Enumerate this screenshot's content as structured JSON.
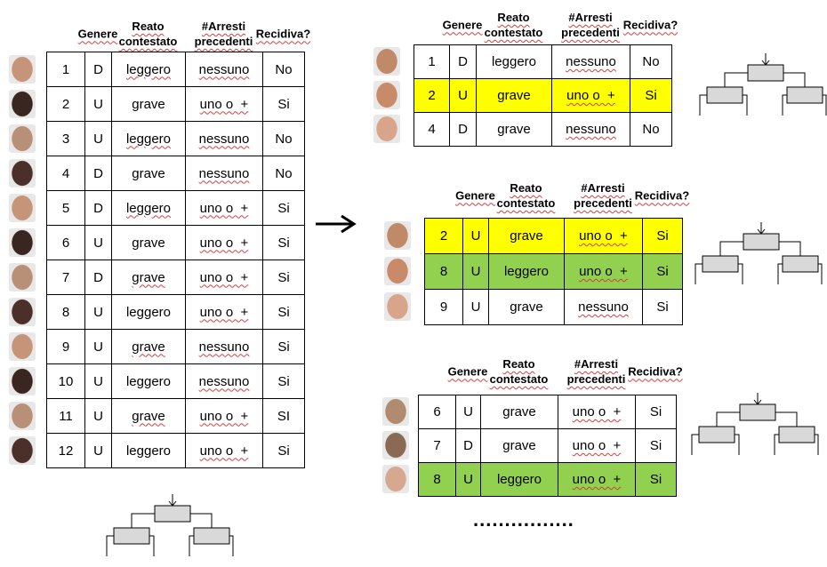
{
  "main": {
    "headers": [
      "Genere",
      "Reato contestato",
      "#Arresti precedenti",
      "Recidiva?"
    ],
    "rows": [
      [
        1,
        "D",
        "leggero",
        "nessuno",
        "No"
      ],
      [
        2,
        "U",
        "grave",
        "uno o  +",
        "Si"
      ],
      [
        3,
        "U",
        "leggero",
        "nessuno",
        "No"
      ],
      [
        4,
        "D",
        "grave",
        "nessuno",
        "No"
      ],
      [
        5,
        "D",
        "leggero",
        "uno o  +",
        "Si"
      ],
      [
        6,
        "U",
        "grave",
        "uno o  +",
        "Si"
      ],
      [
        7,
        "D",
        "grave",
        "uno o  +",
        "Si"
      ],
      [
        8,
        "U",
        "leggero",
        "uno o  +",
        "Si"
      ],
      [
        9,
        "U",
        "grave",
        "nessuno",
        "Si"
      ],
      [
        10,
        "U",
        "leggero",
        "nessuno",
        "Si"
      ],
      [
        11,
        "U",
        "grave",
        "uno o  +",
        "SI"
      ],
      [
        12,
        "U",
        "leggero",
        "uno o  +",
        "Si"
      ]
    ],
    "row_colors": [
      "#ffffff",
      "#ffffff",
      "#ffffff",
      "#ffffff",
      "#ffffff",
      "#ffffff",
      "#ffffff",
      "#ffffff",
      "#ffffff",
      "#ffffff",
      "#ffffff",
      "#ffffff"
    ]
  },
  "subsets": [
    {
      "headers": [
        "Genere",
        "Reato contestato",
        "#Arresti precedenti",
        "Recidiva?"
      ],
      "rows": [
        [
          1,
          "D",
          "leggero",
          "nessuno",
          "No"
        ],
        [
          2,
          "U",
          "grave",
          "uno o  +",
          "Si"
        ],
        [
          4,
          "D",
          "grave",
          "nessuno",
          "No"
        ]
      ],
      "row_colors": [
        "#ffffff",
        "#ffff00",
        "#ffffff"
      ]
    },
    {
      "headers": [
        "Genere",
        "Reato contestato",
        "#Arresti precedenti",
        "Recidiva?"
      ],
      "rows": [
        [
          2,
          "U",
          "grave",
          "uno o  +",
          "Si"
        ],
        [
          8,
          "U",
          "leggero",
          "uno o  +",
          "Si"
        ],
        [
          9,
          "U",
          "grave",
          "nessuno",
          "Si"
        ]
      ],
      "row_colors": [
        "#ffff00",
        "#92d050",
        "#ffffff"
      ]
    },
    {
      "headers": [
        "Genere",
        "Reato contestato",
        "#Arresti precedenti",
        "Recidiva?"
      ],
      "rows": [
        [
          6,
          "U",
          "grave",
          "uno o  +",
          "Si"
        ],
        [
          7,
          "D",
          "grave",
          "uno o  +",
          "Si"
        ],
        [
          8,
          "U",
          "leggero",
          "uno o  +",
          "Si"
        ]
      ],
      "row_colors": [
        "#ffffff",
        "#ffffff",
        "#92d050"
      ]
    }
  ],
  "ellipsis": "................"
}
